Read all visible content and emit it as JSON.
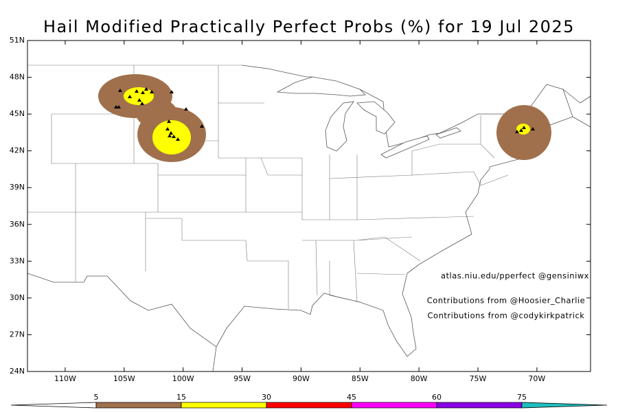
{
  "title": "Hail Modified Practically Perfect Probs (%) for 19 Jul 2025",
  "map": {
    "xlim": [
      -113.2,
      -65.45
    ],
    "ylim": [
      24,
      51
    ],
    "xticks": [
      {
        "value": -110,
        "label": "110W"
      },
      {
        "value": -105,
        "label": "105W"
      },
      {
        "value": -100,
        "label": "100W"
      },
      {
        "value": -95,
        "label": "95W"
      },
      {
        "value": -90,
        "label": "90W"
      },
      {
        "value": -85,
        "label": "85W"
      },
      {
        "value": -80,
        "label": "80W"
      },
      {
        "value": -75,
        "label": "75W"
      },
      {
        "value": -70,
        "label": "70W"
      }
    ],
    "yticks": [
      {
        "value": 24,
        "label": "24N"
      },
      {
        "value": 27,
        "label": "27N"
      },
      {
        "value": 30,
        "label": "30N"
      },
      {
        "value": 33,
        "label": "33N"
      },
      {
        "value": 36,
        "label": "36N"
      },
      {
        "value": 39,
        "label": "39N"
      },
      {
        "value": 42,
        "label": "42N"
      },
      {
        "value": 45,
        "label": "45N"
      },
      {
        "value": 48,
        "label": "48N"
      },
      {
        "value": 51,
        "label": "51N"
      }
    ]
  },
  "credits": [
    "atlas.niu.edu/pperfect @gensiniwx",
    "Contributions from @Hoosier_Charlie",
    "Contributions from @codykirkpatrick"
  ],
  "colorbar": {
    "levels": [
      5,
      15,
      30,
      45,
      60,
      75
    ],
    "colors": [
      "#a0704c",
      "#ffff00",
      "#ff0000",
      "#ff00ff",
      "#8a00e6",
      "#1fbfbf"
    ]
  }
}
